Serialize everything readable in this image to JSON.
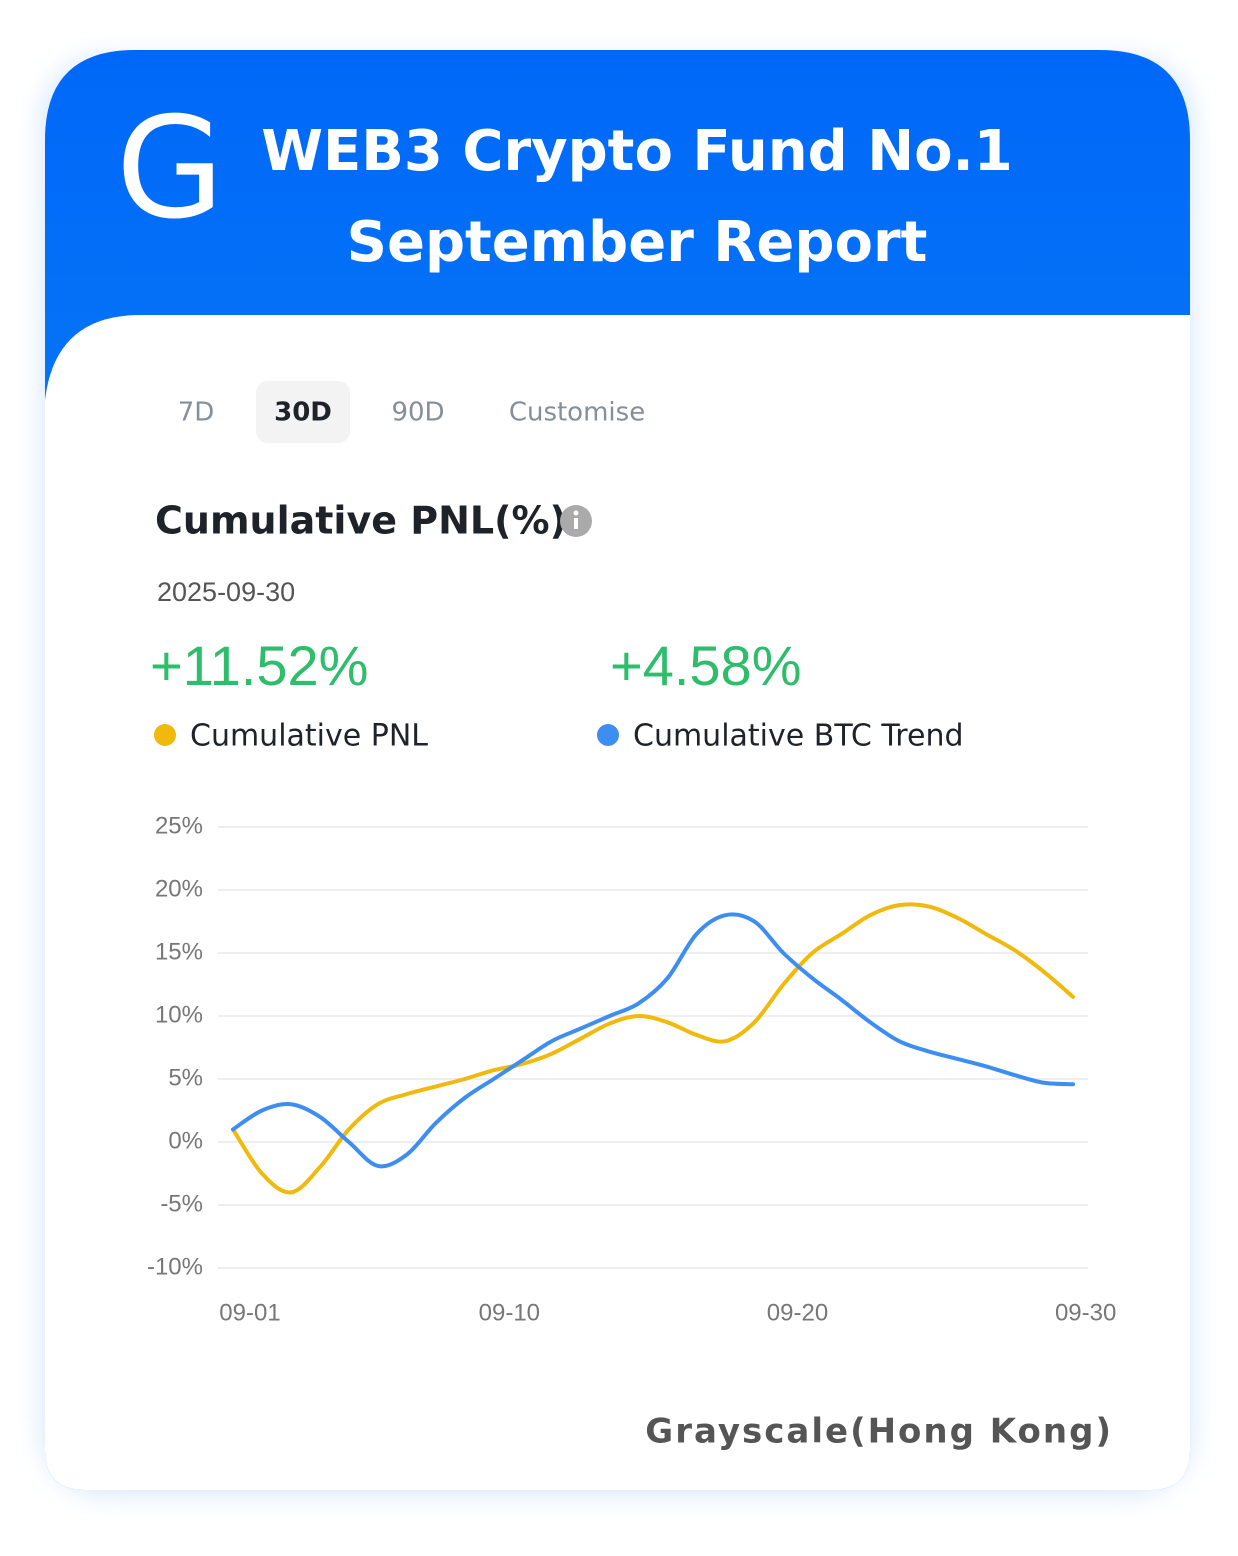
{
  "header": {
    "logo": "G",
    "title": "WEB3 Crypto Fund No.1",
    "subtitle": "September Report"
  },
  "tabs": {
    "items": [
      "7D",
      "30D",
      "90D",
      "Customise"
    ],
    "selected": 1
  },
  "chart_data": {
    "type": "line",
    "title": "Cumulative PNL(%)",
    "date": "2025-09-30",
    "summary": [
      "+11.52%",
      "+4.58%"
    ],
    "categories": [
      "09-01",
      null,
      null,
      null,
      null,
      null,
      null,
      null,
      null,
      "09-10",
      null,
      null,
      null,
      null,
      null,
      null,
      null,
      null,
      null,
      "09-20",
      null,
      null,
      null,
      null,
      null,
      null,
      null,
      null,
      null,
      "09-30"
    ],
    "series": [
      {
        "name": "Cumulative PNL",
        "color": "#f0b90b",
        "values": [
          1,
          -2.5,
          -4,
          -2,
          1,
          3,
          3.8,
          4.4,
          5,
          5.7,
          6.2,
          7,
          8.2,
          9.4,
          10,
          9.5,
          8.5,
          8,
          9.5,
          12.5,
          15,
          16.5,
          18,
          18.8,
          18.7,
          17.8,
          16.5,
          15.2,
          13.5,
          11.52
        ]
      },
      {
        "name": "Cumulative BTC Trend",
        "color": "#3d8ef0",
        "values": [
          1,
          2.5,
          3,
          2,
          0,
          -1.9,
          -1,
          1.5,
          3.5,
          5,
          6.5,
          8,
          9,
          10,
          11,
          13,
          16.5,
          18,
          17.5,
          15,
          13,
          11.3,
          9.5,
          8,
          7.2,
          6.6,
          6,
          5.3,
          4.7,
          4.58
        ]
      }
    ],
    "ylim": [
      -10,
      25
    ],
    "yticks": [
      {
        "value": -10,
        "label": "-10%"
      },
      {
        "value": -5,
        "label": "-5%"
      },
      {
        "value": 0,
        "label": "0%"
      },
      {
        "value": 5,
        "label": "5%"
      },
      {
        "value": 10,
        "label": "10%"
      },
      {
        "value": 15,
        "label": "15%"
      },
      {
        "value": 20,
        "label": "20%"
      },
      {
        "value": 25,
        "label": "25%"
      }
    ],
    "grid": true
  },
  "footer": "Grayscale(Hong Kong)"
}
